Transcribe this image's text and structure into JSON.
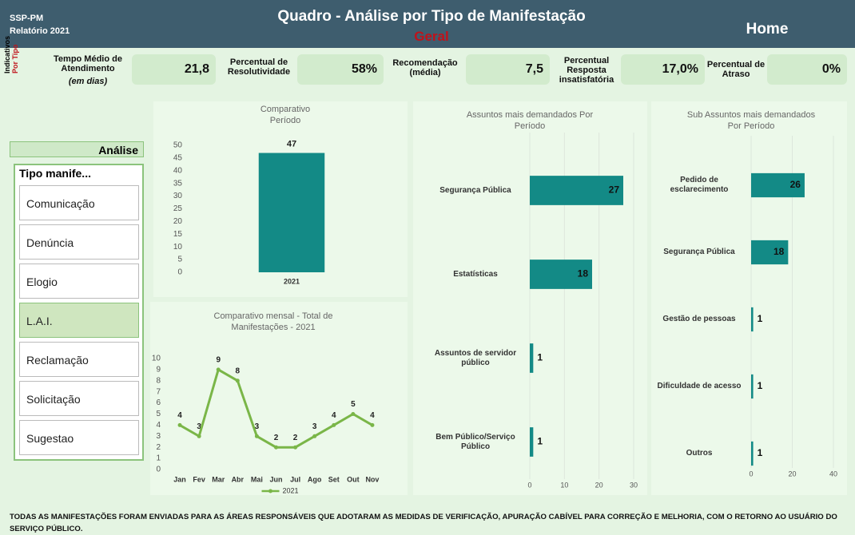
{
  "header": {
    "org": "SSP-PM",
    "report": "Relatório 2021",
    "title": "Quadro - Análise por Tipo de Manifestação",
    "subtitle": "Geral",
    "home": "Home"
  },
  "indicators": {
    "side_label": [
      "Indicativos",
      "Por Tipo"
    ],
    "items": [
      {
        "label": "Tempo Médio de Atendimento",
        "note": "(em dias)",
        "value": "21,8"
      },
      {
        "label": "Percentual de Resolutividade",
        "value": "58%"
      },
      {
        "label": "Recomendação (média)",
        "value": "7,5"
      },
      {
        "label": "Percentual Resposta insatisfatória",
        "value": "17,0%"
      },
      {
        "label": "Percentual de Atraso",
        "value": "0%"
      }
    ]
  },
  "filter": {
    "panel_title": "Análise",
    "slicer_title": "Tipo manife...",
    "options": [
      "Comunicação",
      "Denúncia",
      "Elogio",
      "L.A.I.",
      "Reclamação",
      "Solicitação",
      "Sugestao"
    ],
    "selected": "L.A.I."
  },
  "footer": "TODAS AS MANIFESTAÇÕES FORAM ENVIADAS PARA AS ÁREAS RESPONSÁVEIS QUE ADOTARAM AS MEDIDAS DE VERIFICAÇÃO, APURAÇÃO CABÍVEL PARA CORREÇÃO E MELHORIA, COM O RETORNO AO USUÁRIO DO SERVIÇO PÚBLICO.",
  "chart_data": [
    {
      "type": "bar",
      "title": "Comparativo Período",
      "categories": [
        "2021"
      ],
      "values": [
        47
      ],
      "color": "#138a86",
      "ylim": [
        0,
        50
      ],
      "yticks": [
        0,
        5,
        10,
        15,
        20,
        25,
        30,
        35,
        40,
        45,
        50
      ],
      "grid": false
    },
    {
      "type": "line",
      "title": "Comparativo mensal - Total de Manifestações - 2021",
      "categories": [
        "Jan",
        "Fev",
        "Mar",
        "Abr",
        "Mai",
        "Jun",
        "Jul",
        "Ago",
        "Set",
        "Out",
        "Nov"
      ],
      "series": [
        {
          "name": "2021",
          "color": "#7ab648",
          "values": [
            4,
            3,
            9,
            8,
            3,
            2,
            2,
            3,
            4,
            5,
            4
          ]
        }
      ],
      "ylim": [
        0,
        10
      ],
      "yticks": [
        0,
        1,
        2,
        3,
        4,
        5,
        6,
        7,
        8,
        9,
        10
      ],
      "grid": false,
      "legend": "bottom"
    },
    {
      "type": "bar",
      "orientation": "horizontal",
      "title": "Assuntos mais demandados Por Período",
      "categories": [
        "Segurança Pública",
        "Estatísticas",
        "Assuntos de servidor público",
        "Bem Público/Serviço Público"
      ],
      "values": [
        27,
        18,
        1,
        1
      ],
      "color": "#138a86",
      "xlim": [
        0,
        30
      ],
      "xticks": [
        0,
        10,
        20,
        30
      ],
      "grid": true
    },
    {
      "type": "bar",
      "orientation": "horizontal",
      "title": "Sub Assuntos mais demandados Por Período",
      "categories": [
        "Pedido de esclarecimento",
        "Segurança Pública",
        "Gestão de pessoas",
        "Dificuldade de acesso",
        "Outros"
      ],
      "values": [
        26,
        18,
        1,
        1,
        1
      ],
      "color": "#138a86",
      "xlim": [
        0,
        40
      ],
      "xticks": [
        0,
        20,
        40
      ],
      "grid": true
    }
  ]
}
